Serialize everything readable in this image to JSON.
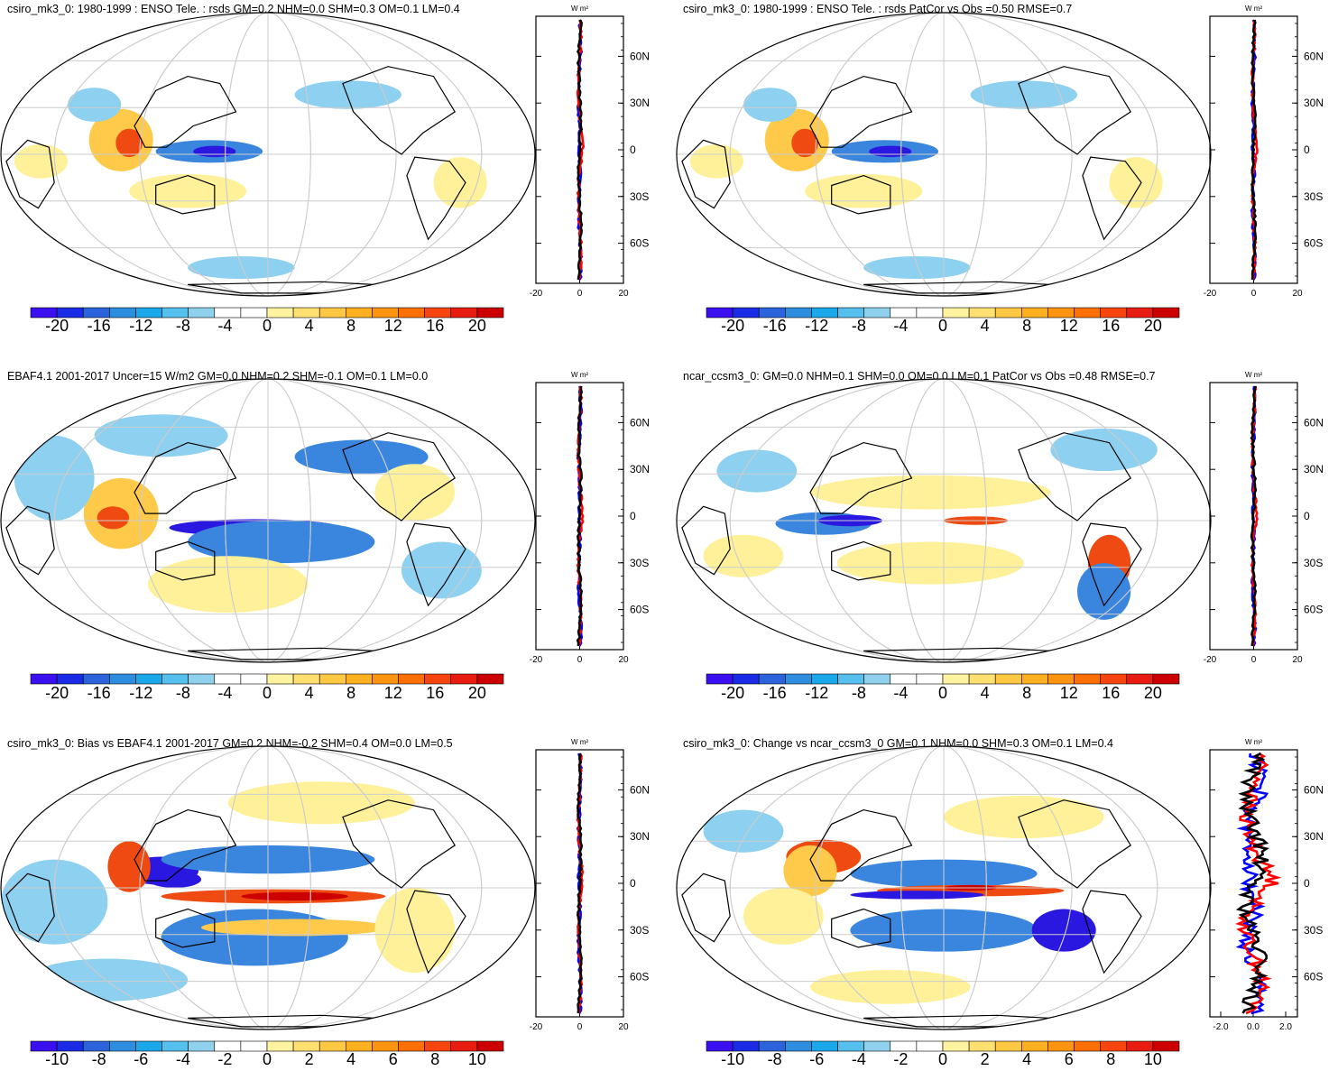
{
  "panels": [
    {
      "title": "csiro_mk3_0: 1980-1999 : ENSO Tele. : rsds GM=0.2 NHM=0.0 SHM=0.3 OM=0.1 LM=0.4",
      "colorbar_labels": [
        "-20",
        "-16",
        "-12",
        "-8",
        "-4",
        "0",
        "4",
        "8",
        "12",
        "16",
        "20"
      ],
      "profile": {
        "unit": "W m²",
        "x_ticks": [
          "-20",
          "0",
          "20"
        ],
        "y_ticks": [
          "60N",
          "30N",
          "0",
          "30S",
          "60S"
        ],
        "xlim": [
          -20,
          20
        ],
        "series_colors": [
          "#0000ff",
          "#ff0000",
          "#000000"
        ]
      }
    },
    {
      "title": "csiro_mk3_0: 1980-1999 : ENSO Tele. : rsds PatCor vs Obs =0.50 RMSE=0.7",
      "colorbar_labels": [
        "-20",
        "-16",
        "-12",
        "-8",
        "-4",
        "0",
        "4",
        "8",
        "12",
        "16",
        "20"
      ],
      "profile": {
        "unit": "W m²",
        "x_ticks": [
          "-20",
          "0",
          "20"
        ],
        "y_ticks": [
          "60N",
          "30N",
          "0",
          "30S",
          "60S"
        ],
        "xlim": [
          -20,
          20
        ],
        "series_colors": [
          "#0000ff",
          "#ff0000",
          "#000000"
        ]
      }
    },
    {
      "title": "EBAF4.1 2001-2017 Uncer=15 W/m2 GM=0.0 NHM=0.2 SHM=-0.1 OM=0.1 LM=0.0",
      "colorbar_labels": [
        "-20",
        "-16",
        "-12",
        "-8",
        "-4",
        "0",
        "4",
        "8",
        "12",
        "16",
        "20"
      ],
      "profile": {
        "unit": "W m²",
        "x_ticks": [
          "-20",
          "0",
          "20"
        ],
        "y_ticks": [
          "60N",
          "30N",
          "0",
          "30S",
          "60S"
        ],
        "xlim": [
          -20,
          20
        ],
        "series_colors": [
          "#0000ff",
          "#ff0000",
          "#000000"
        ]
      }
    },
    {
      "title": "ncar_ccsm3_0: GM=0.0 NHM=0.1 SHM=0.0 OM=0.0 LM=0.1 PatCor vs Obs =0.48 RMSE=0.7",
      "colorbar_labels": [
        "-20",
        "-16",
        "-12",
        "-8",
        "-4",
        "0",
        "4",
        "8",
        "12",
        "16",
        "20"
      ],
      "profile": {
        "unit": "W m²",
        "x_ticks": [
          "-20",
          "0",
          "20"
        ],
        "y_ticks": [
          "60N",
          "30N",
          "0",
          "30S",
          "60S"
        ],
        "xlim": [
          -20,
          20
        ],
        "series_colors": [
          "#0000ff",
          "#ff0000",
          "#000000"
        ]
      }
    },
    {
      "title": "csiro_mk3_0: Bias vs EBAF4.1 2001-2017 GM=0.2 NHM=-0.2 SHM=0.4 OM=0.0 LM=0.5",
      "colorbar_labels": [
        "-10",
        "-8",
        "-6",
        "-4",
        "-2",
        "0",
        "2",
        "4",
        "6",
        "8",
        "10"
      ],
      "profile": {
        "unit": "W m²",
        "x_ticks": [
          "-20",
          "0",
          "20"
        ],
        "y_ticks": [
          "60N",
          "30N",
          "0",
          "30S",
          "60S"
        ],
        "xlim": [
          -20,
          20
        ],
        "series_colors": [
          "#0000ff",
          "#ff0000",
          "#000000"
        ]
      }
    },
    {
      "title": "csiro_mk3_0: Change vs ncar_ccsm3_0 GM=0.1 NHM=0.0 SHM=0.3 OM=0.1 LM=0.4",
      "colorbar_labels": [
        "-10",
        "-8",
        "-6",
        "-4",
        "-2",
        "0",
        "2",
        "4",
        "6",
        "8",
        "10"
      ],
      "profile": {
        "unit": "W m²",
        "x_ticks": [
          "-2.0",
          "0.0",
          "2.0"
        ],
        "y_ticks": [
          "60N",
          "30N",
          "0",
          "30S",
          "60S"
        ],
        "xlim": [
          -3.2,
          3.2
        ],
        "series_colors": [
          "#0000ff",
          "#ff0000",
          "#000000"
        ]
      }
    }
  ],
  "colorbar_colors": [
    "#3a0ff0",
    "#1a2be6",
    "#2b63dd",
    "#2d8ee0",
    "#1aa8ea",
    "#55c0ee",
    "#8fd0ec",
    "#ffffff",
    "#ffffff",
    "#fff3a0",
    "#ffe070",
    "#ffc842",
    "#ffb020",
    "#ff9410",
    "#ff7000",
    "#f84510",
    "#e81c10",
    "#cc0000"
  ],
  "map_palette": {
    "strong_negative": "#2a18e0",
    "negative": "#3a86de",
    "weak_negative": "#8dd0f0",
    "weak_positive": "#fff19a",
    "positive": "#ffc94a",
    "strong_positive": "#ef4a12",
    "extreme_positive": "#cc0000"
  }
}
